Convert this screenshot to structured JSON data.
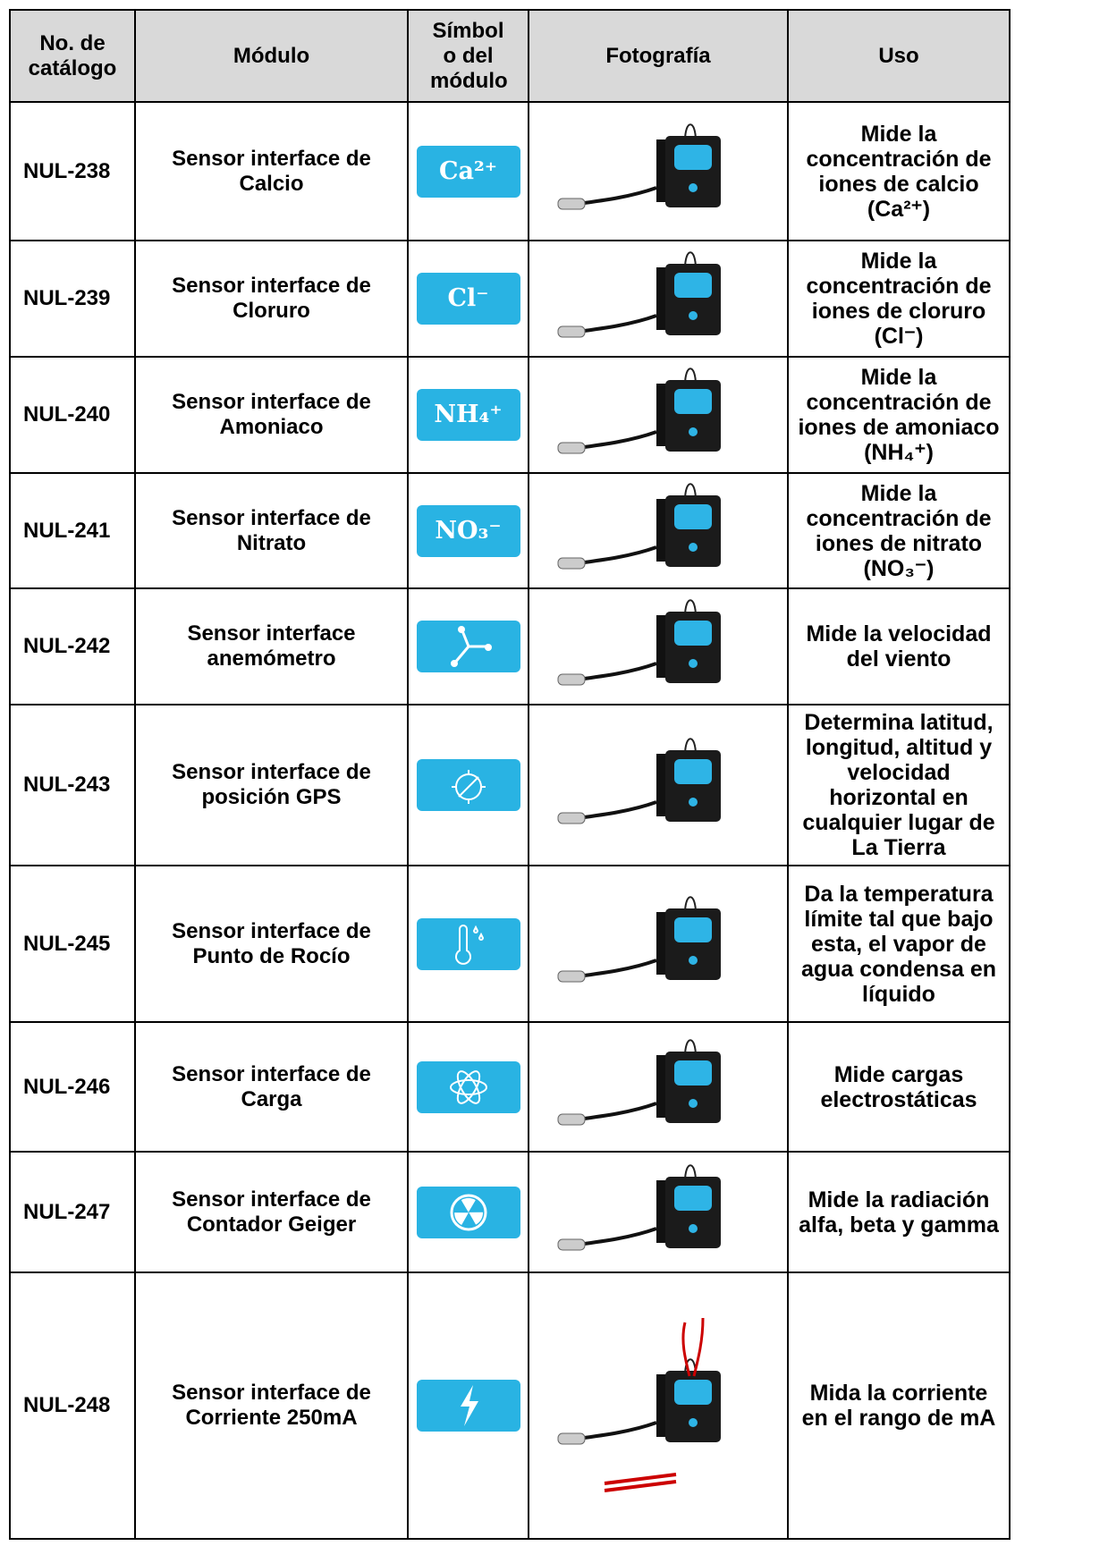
{
  "header": [
    "No. de catálogo",
    "Módulo",
    "Símbol o del módulo",
    "Fotografía",
    "Uso"
  ],
  "rows": [
    {
      "catalog": "NUL-238",
      "module": "Sensor interface de Calcio",
      "symbol": "Ca²⁺",
      "uso": "Mide la concentración de iones de calcio (Ca²⁺)"
    },
    {
      "catalog": "NUL-239",
      "module": "Sensor interface de Cloruro",
      "symbol": "Cl⁻",
      "uso": "Mide la concentración de iones de cloruro (Cl⁻)"
    },
    {
      "catalog": "NUL-240",
      "module": "Sensor interface de Amoniaco",
      "symbol": "NH₄⁺",
      "uso": "Mide la concentración de iones de amoniaco (NH₄⁺)"
    },
    {
      "catalog": "NUL-241",
      "module": "Sensor interface de Nitrato",
      "symbol": "NO₃⁻",
      "uso": "Mide la concentración de iones de nitrato (NO₃⁻)"
    },
    {
      "catalog": "NUL-242",
      "module": "Sensor interface anemómetro",
      "uso": "Mide la velocidad del viento"
    },
    {
      "catalog": "NUL-243",
      "module": "Sensor interface de posición GPS",
      "uso": "Determina latitud, longitud, altitud y velocidad horizontal en cualquier lugar de La Tierra"
    },
    {
      "catalog": "NUL-245",
      "module": "Sensor interface de Punto de Rocío",
      "uso": "Da la temperatura límite tal que bajo esta, el vapor de agua condensa en líquido"
    },
    {
      "catalog": "NUL-246",
      "module": "Sensor interface de Carga",
      "uso": "Mide cargas electrostáticas"
    },
    {
      "catalog": "NUL-247",
      "module": "Sensor interface de Contador Geiger",
      "uso": "Mide la radiación alfa, beta y gamma"
    },
    {
      "catalog": "NUL-248",
      "module": "Sensor interface de Corriente 250mA",
      "uso": "Mida la corriente en el rango de mA"
    }
  ]
}
